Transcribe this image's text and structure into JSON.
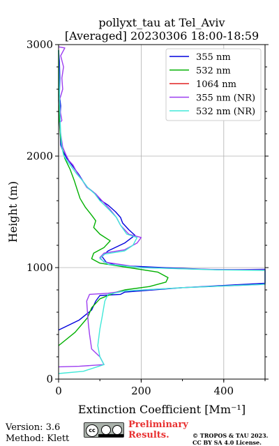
{
  "title_line1": "pollyxt_tau at Tel_Aviv",
  "title_line2": "[Averaged] 20230306 18:00-18:59",
  "footer": {
    "version": "Version: 3.6",
    "method": "Method: Klett",
    "preliminary_line1": "Preliminary",
    "preliminary_line2": "Results.",
    "copyright_line1": "© TROPOS & TAU 2023.",
    "copyright_line2": "CC BY SA 4.0 License.",
    "license_badge": "cc"
  },
  "chart_data": {
    "type": "line",
    "title": "pollyxt_tau at Tel_Aviv\n[Averaged] 20230306 18:00-18:59",
    "xlabel": "Extinction Coefficient [Mm⁻¹]",
    "ylabel": "Height (m)",
    "xlim": [
      0,
      500
    ],
    "ylim": [
      0,
      3000
    ],
    "xticks": [
      0,
      200,
      400
    ],
    "yticks": [
      0,
      1000,
      2000,
      3000
    ],
    "grid": true,
    "legend_position": "top-right",
    "series": [
      {
        "name": "355 nm",
        "color": "#0000dd",
        "points": [
          [
            0,
            440
          ],
          [
            50,
            530
          ],
          [
            80,
            620
          ],
          [
            90,
            700
          ],
          [
            100,
            750
          ],
          [
            150,
            760
          ],
          [
            160,
            780
          ],
          [
            300,
            820
          ],
          [
            500,
            860
          ],
          [
            500,
            985
          ],
          [
            390,
            980
          ],
          [
            250,
            1000
          ],
          [
            140,
            1020
          ],
          [
            115,
            1050
          ],
          [
            105,
            1100
          ],
          [
            120,
            1150
          ],
          [
            160,
            1220
          ],
          [
            185,
            1290
          ],
          [
            170,
            1340
          ],
          [
            155,
            1400
          ],
          [
            150,
            1450
          ],
          [
            138,
            1500
          ],
          [
            120,
            1560
          ],
          [
            100,
            1610
          ],
          [
            90,
            1660
          ],
          [
            70,
            1720
          ],
          [
            60,
            1770
          ],
          [
            50,
            1830
          ],
          [
            40,
            1880
          ],
          [
            30,
            1930
          ],
          [
            20,
            1980
          ],
          [
            10,
            2050
          ],
          [
            5,
            2100
          ],
          [
            4,
            2200
          ],
          [
            3,
            2320
          ],
          [
            5,
            2450
          ],
          [
            2,
            2550
          ],
          [
            3,
            2700
          ],
          [
            2,
            2850
          ],
          [
            0,
            2950
          ]
        ]
      },
      {
        "name": "532 nm",
        "color": "#00b000",
        "points": [
          [
            0,
            300
          ],
          [
            40,
            420
          ],
          [
            70,
            550
          ],
          [
            80,
            640
          ],
          [
            100,
            720
          ],
          [
            140,
            780
          ],
          [
            160,
            800
          ],
          [
            220,
            830
          ],
          [
            260,
            870
          ],
          [
            265,
            910
          ],
          [
            240,
            960
          ],
          [
            170,
            1000
          ],
          [
            100,
            1040
          ],
          [
            80,
            1080
          ],
          [
            85,
            1130
          ],
          [
            110,
            1180
          ],
          [
            125,
            1240
          ],
          [
            100,
            1300
          ],
          [
            85,
            1360
          ],
          [
            90,
            1420
          ],
          [
            80,
            1470
          ],
          [
            65,
            1540
          ],
          [
            52,
            1620
          ],
          [
            45,
            1700
          ],
          [
            38,
            1780
          ],
          [
            28,
            1880
          ],
          [
            15,
            1980
          ],
          [
            10,
            2050
          ],
          [
            5,
            2150
          ],
          [
            2,
            2300
          ],
          [
            0,
            2500
          ],
          [
            0,
            2950
          ]
        ]
      },
      {
        "name": "1064 nm",
        "color": "#e02020",
        "points": []
      },
      {
        "name": "355 nm (NR)",
        "color": "#9c3cf0",
        "points": [
          [
            0,
            110
          ],
          [
            50,
            115
          ],
          [
            110,
            130
          ],
          [
            100,
            200
          ],
          [
            80,
            270
          ],
          [
            75,
            400
          ],
          [
            72,
            500
          ],
          [
            70,
            600
          ],
          [
            68,
            700
          ],
          [
            75,
            760
          ],
          [
            120,
            770
          ],
          [
            160,
            790
          ],
          [
            300,
            820
          ],
          [
            500,
            850
          ],
          [
            500,
            980
          ],
          [
            350,
            985
          ],
          [
            200,
            1000
          ],
          [
            110,
            1050
          ],
          [
            100,
            1090
          ],
          [
            110,
            1130
          ],
          [
            160,
            1160
          ],
          [
            190,
            1220
          ],
          [
            200,
            1270
          ],
          [
            170,
            1300
          ],
          [
            150,
            1380
          ],
          [
            140,
            1450
          ],
          [
            125,
            1520
          ],
          [
            105,
            1600
          ],
          [
            90,
            1660
          ],
          [
            68,
            1720
          ],
          [
            58,
            1780
          ],
          [
            45,
            1850
          ],
          [
            35,
            1920
          ],
          [
            25,
            1960
          ],
          [
            18,
            2010
          ],
          [
            10,
            2080
          ],
          [
            5,
            2200
          ],
          [
            3,
            2300
          ],
          [
            8,
            2320
          ],
          [
            4,
            2400
          ],
          [
            2,
            2500
          ],
          [
            10,
            2600
          ],
          [
            8,
            2700
          ],
          [
            12,
            2800
          ],
          [
            5,
            2900
          ],
          [
            15,
            2970
          ],
          [
            0,
            2980
          ]
        ]
      },
      {
        "name": "532 nm (NR)",
        "color": "#40e8d8",
        "points": [
          [
            0,
            50
          ],
          [
            60,
            70
          ],
          [
            110,
            130
          ],
          [
            100,
            200
          ],
          [
            95,
            300
          ],
          [
            100,
            450
          ],
          [
            105,
            550
          ],
          [
            112,
            700
          ],
          [
            120,
            760
          ],
          [
            160,
            790
          ],
          [
            300,
            820
          ],
          [
            500,
            850
          ],
          [
            500,
            975
          ],
          [
            380,
            980
          ],
          [
            200,
            1000
          ],
          [
            120,
            1030
          ],
          [
            100,
            1080
          ],
          [
            110,
            1120
          ],
          [
            160,
            1150
          ],
          [
            180,
            1200
          ],
          [
            190,
            1270
          ],
          [
            165,
            1300
          ],
          [
            150,
            1380
          ],
          [
            140,
            1450
          ],
          [
            122,
            1520
          ],
          [
            100,
            1600
          ],
          [
            88,
            1660
          ],
          [
            70,
            1720
          ],
          [
            58,
            1780
          ],
          [
            44,
            1840
          ],
          [
            32,
            1900
          ],
          [
            20,
            1960
          ],
          [
            12,
            2010
          ],
          [
            8,
            2080
          ],
          [
            5,
            2200
          ],
          [
            3,
            2400
          ],
          [
            2,
            2600
          ],
          [
            0,
            2950
          ]
        ]
      }
    ]
  }
}
